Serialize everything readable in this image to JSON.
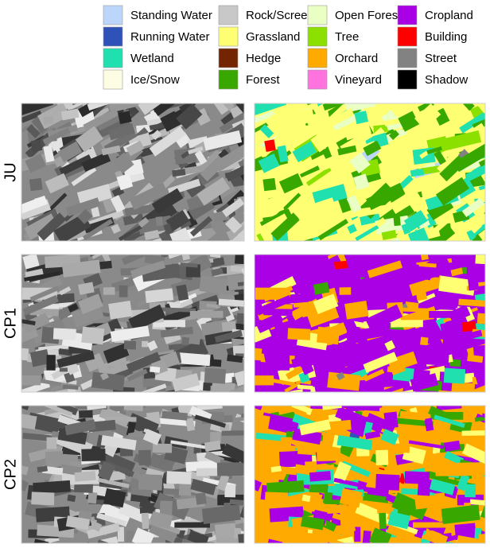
{
  "legend": {
    "items": [
      {
        "label": "Standing Water",
        "color": "#bcd6fb"
      },
      {
        "label": "Running Water",
        "color": "#2f52b8"
      },
      {
        "label": "Wetland",
        "color": "#20e0b0"
      },
      {
        "label": "Ice/Snow",
        "color": "#fdfde4"
      },
      {
        "label": "Rock/Scree",
        "color": "#c8c8c8"
      },
      {
        "label": "Grassland",
        "color": "#ffff73"
      },
      {
        "label": "Hedge",
        "color": "#732400"
      },
      {
        "label": "Forest",
        "color": "#38a800"
      },
      {
        "label": "Open Forest",
        "color": "#e9ffc4"
      },
      {
        "label": "Tree",
        "color": "#8ce000"
      },
      {
        "label": "Orchard",
        "color": "#ffaa00"
      },
      {
        "label": "Vineyard",
        "color": "#ff73df"
      },
      {
        "label": "Cropland",
        "color": "#a900e6"
      },
      {
        "label": "Building",
        "color": "#ff0000"
      },
      {
        "label": "Street",
        "color": "#828282"
      },
      {
        "label": "Shadow",
        "color": "#000000"
      }
    ]
  },
  "panels": {
    "rows": [
      {
        "label": "JU"
      },
      {
        "label": "CP1"
      },
      {
        "label": "CP2"
      }
    ]
  }
}
